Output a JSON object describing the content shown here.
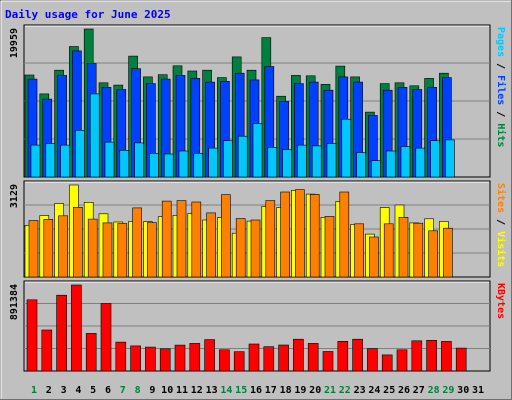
{
  "chart_data": {
    "type": "bar",
    "title": "Daily usage for June 2025",
    "categories": [
      "1",
      "2",
      "3",
      "4",
      "5",
      "6",
      "7",
      "8",
      "9",
      "10",
      "11",
      "12",
      "13",
      "14",
      "15",
      "16",
      "17",
      "18",
      "19",
      "20",
      "21",
      "22",
      "23",
      "24",
      "25",
      "26",
      "27",
      "28",
      "29",
      "30",
      "31"
    ],
    "weekend_days": [
      "1",
      "7",
      "8",
      "14",
      "15",
      "21",
      "22",
      "28",
      "29"
    ],
    "panels": [
      {
        "id": "hits-panel",
        "max_label": "19959",
        "ymax": 19959,
        "legend": [
          {
            "label": "Pages",
            "color": "#00c8ff"
          },
          {
            "label": "Files",
            "color": "#0040ff"
          },
          {
            "label": "Hits",
            "color": "#008040"
          }
        ],
        "series": [
          {
            "name": "Hits",
            "color": "#008040",
            "values": [
              13750,
              11200,
              14400,
              17600,
              19959,
              12700,
              12400,
              16300,
              13500,
              13800,
              15000,
              14300,
              14400,
              13400,
              16200,
              14400,
              18800,
              10900,
              13700,
              13650,
              12500,
              14950,
              13500,
              8750,
              12600,
              12700,
              12300,
              13300,
              14000
            ]
          },
          {
            "name": "Files",
            "color": "#0040ff",
            "values": [
              13200,
              10500,
              13700,
              17000,
              15300,
              12100,
              11800,
              14600,
              12600,
              13200,
              13700,
              13300,
              12800,
              12900,
              14000,
              13100,
              14900,
              10200,
              12600,
              12800,
              11700,
              13500,
              12800,
              8300,
              11700,
              12100,
              11800,
              12100,
              13400
            ]
          },
          {
            "name": "Pages",
            "color": "#00c8ff",
            "values": [
              4300,
              4500,
              4300,
              6300,
              11200,
              4700,
              3600,
              4600,
              3200,
              3100,
              3500,
              3200,
              3900,
              4900,
              5500,
              7200,
              4000,
              3700,
              4300,
              4200,
              4500,
              7800,
              3300,
              2200,
              3500,
              4100,
              3900,
              4900,
              5000
            ]
          }
        ]
      },
      {
        "id": "visits-panel",
        "max_label": "3129",
        "ymax": 3129,
        "legend": [
          {
            "label": "Sites",
            "color": "#ff8000"
          },
          {
            "label": "Visits",
            "color": "#ffff00"
          }
        ],
        "series": [
          {
            "name": "Visits",
            "color": "#ffff00",
            "values": [
              1760,
              2090,
              2500,
              3129,
              2540,
              2150,
              1870,
              1890,
              1880,
              2050,
              2100,
              2160,
              1940,
              2020,
              1490,
              1900,
              2400,
              2360,
              2950,
              2820,
              2030,
              2570,
              1790,
              1460,
              2360,
              2450,
              1840,
              1980,
              1890
            ]
          },
          {
            "name": "Sites",
            "color": "#ff8000",
            "values": [
              1920,
              1960,
              2080,
              2370,
              1970,
              1840,
              1820,
              2350,
              1850,
              2580,
              2600,
              2550,
              2180,
              2800,
              1990,
              1940,
              2600,
              2890,
              2970,
              2810,
              2060,
              2890,
              1810,
              1360,
              1810,
              2030,
              1830,
              1570,
              1660
            ]
          }
        ]
      },
      {
        "id": "kbytes-panel",
        "max_label": "891384",
        "ymax": 891384,
        "legend": [
          {
            "label": "KBytes",
            "color": "#ff0000"
          }
        ],
        "series": [
          {
            "name": "KBytes",
            "color": "#ff0000",
            "values": [
              738000,
              425000,
              786000,
              891384,
              390000,
              700000,
              300000,
              260000,
              248000,
              230000,
              268000,
              286000,
              325000,
              220000,
              200000,
              280000,
              252000,
              270000,
              330000,
              286000,
              202000,
              308000,
              330000,
              232000,
              167000,
              220000,
              313000,
              318000,
              307000,
              237000
            ]
          }
        ]
      }
    ]
  }
}
